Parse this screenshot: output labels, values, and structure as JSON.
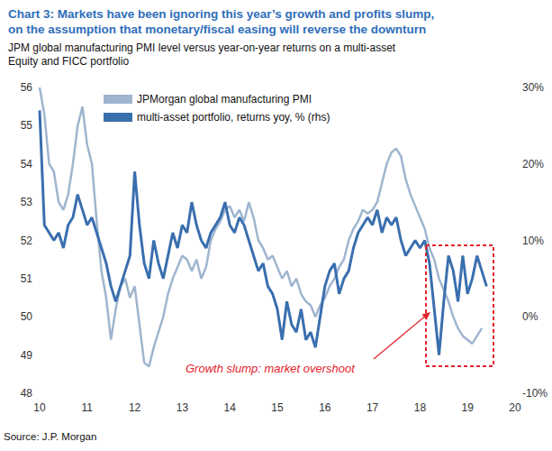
{
  "chart_data": {
    "type": "line",
    "title": "Chart 3: Markets have been ignoring this year’s growth and profits slump,\non the assumption that monetary/fiscal easing will reverse the downturn",
    "subtitle": "JPM global manufacturing PMI level versus year-on-year returns on a multi-asset\nEquity and FICC portfolio",
    "annotation": "Growth slump: market overshoot",
    "source": "Source: J.P. Morgan",
    "x": [
      10,
      10.1,
      10.2,
      10.3,
      10.4,
      10.5,
      10.6,
      10.7,
      10.8,
      10.9,
      11,
      11.1,
      11.2,
      11.3,
      11.4,
      11.5,
      11.6,
      11.7,
      11.8,
      11.9,
      12,
      12.1,
      12.2,
      12.3,
      12.4,
      12.5,
      12.6,
      12.7,
      12.8,
      12.9,
      13,
      13.1,
      13.2,
      13.3,
      13.4,
      13.5,
      13.6,
      13.7,
      13.8,
      13.9,
      14,
      14.1,
      14.2,
      14.3,
      14.4,
      14.5,
      14.6,
      14.7,
      14.8,
      14.9,
      15,
      15.1,
      15.2,
      15.3,
      15.4,
      15.5,
      15.6,
      15.7,
      15.8,
      15.9,
      16,
      16.1,
      16.2,
      16.3,
      16.4,
      16.5,
      16.6,
      16.7,
      16.8,
      16.9,
      17,
      17.1,
      17.2,
      17.3,
      17.4,
      17.5,
      17.6,
      17.7,
      17.8,
      17.9,
      18,
      18.1,
      18.2,
      18.3,
      18.4,
      18.5,
      18.6,
      18.7,
      18.8,
      18.9,
      19,
      19.1,
      19.2,
      19.3,
      19.4
    ],
    "series": [
      {
        "name": "JPMorgan global manufacturing PMI",
        "color": "#9fb5cf",
        "values": [
          56.0,
          55.3,
          54.0,
          53.8,
          53.0,
          52.8,
          53.2,
          54.0,
          55.0,
          55.5,
          54.5,
          54.0,
          52.5,
          51.2,
          50.5,
          49.4,
          50.2,
          50.8,
          51.0,
          50.5,
          50.8,
          49.8,
          48.8,
          48.7,
          49.2,
          49.6,
          50.0,
          50.6,
          51.0,
          51.3,
          51.6,
          51.5,
          51.2,
          51.5,
          51.0,
          51.3,
          52.0,
          52.3,
          52.5,
          52.8,
          52.9,
          52.6,
          52.8,
          52.5,
          53.0,
          52.6,
          52.0,
          51.8,
          51.5,
          51.6,
          51.3,
          51.0,
          51.2,
          50.8,
          51.0,
          50.6,
          50.4,
          50.3,
          50.0,
          50.3,
          50.5,
          50.8,
          51.0,
          51.3,
          51.5,
          52.0,
          52.3,
          52.5,
          52.8,
          52.7,
          52.8,
          53.0,
          53.5,
          54.0,
          54.3,
          54.4,
          54.2,
          53.6,
          53.2,
          52.9,
          52.6,
          52.3,
          51.8,
          51.5,
          51.0,
          50.7,
          50.4,
          50.0,
          49.7,
          49.5,
          49.4,
          49.3,
          49.5,
          49.7,
          null
        ]
      },
      {
        "name": "multi-asset portfolio, returns yoy, % (rhs)",
        "color": "#3a6fae",
        "axis": "y2",
        "values": [
          27,
          12,
          11,
          10,
          11,
          9,
          12,
          13,
          16,
          14,
          12,
          13,
          11,
          9,
          7,
          4,
          2,
          4,
          6,
          8,
          19,
          12,
          7,
          5,
          10,
          7,
          5,
          8,
          11,
          9,
          12,
          11,
          15,
          12,
          10,
          9,
          11,
          12,
          13,
          15,
          12,
          11,
          13,
          12,
          10,
          8,
          6,
          7,
          4,
          3,
          1,
          -3,
          2,
          -1,
          -2,
          1,
          -3,
          -2,
          -4,
          0,
          4,
          6,
          7,
          3,
          5,
          6,
          9,
          11,
          12,
          13,
          12,
          14,
          11,
          13,
          12,
          13,
          10,
          8,
          9,
          10,
          9,
          10,
          7,
          1,
          -5,
          2,
          8,
          6,
          2,
          8,
          3,
          5,
          8,
          6,
          4
        ]
      }
    ],
    "xlim": [
      10,
      20
    ],
    "xticks": [
      10,
      11,
      12,
      13,
      14,
      15,
      16,
      17,
      18,
      19,
      20
    ],
    "ylim": [
      48,
      56
    ],
    "yticks": [
      48,
      49,
      50,
      51,
      52,
      53,
      54,
      55,
      56
    ],
    "y2lim": [
      -10,
      30
    ],
    "y2ticks": [
      {
        "value": -10,
        "label": "-10%"
      },
      {
        "value": 0,
        "label": "0%"
      },
      {
        "value": 10,
        "label": "10%"
      },
      {
        "value": 20,
        "label": "20%"
      },
      {
        "value": 30,
        "label": "30%"
      }
    ],
    "grid": false,
    "legend": "upper left"
  }
}
